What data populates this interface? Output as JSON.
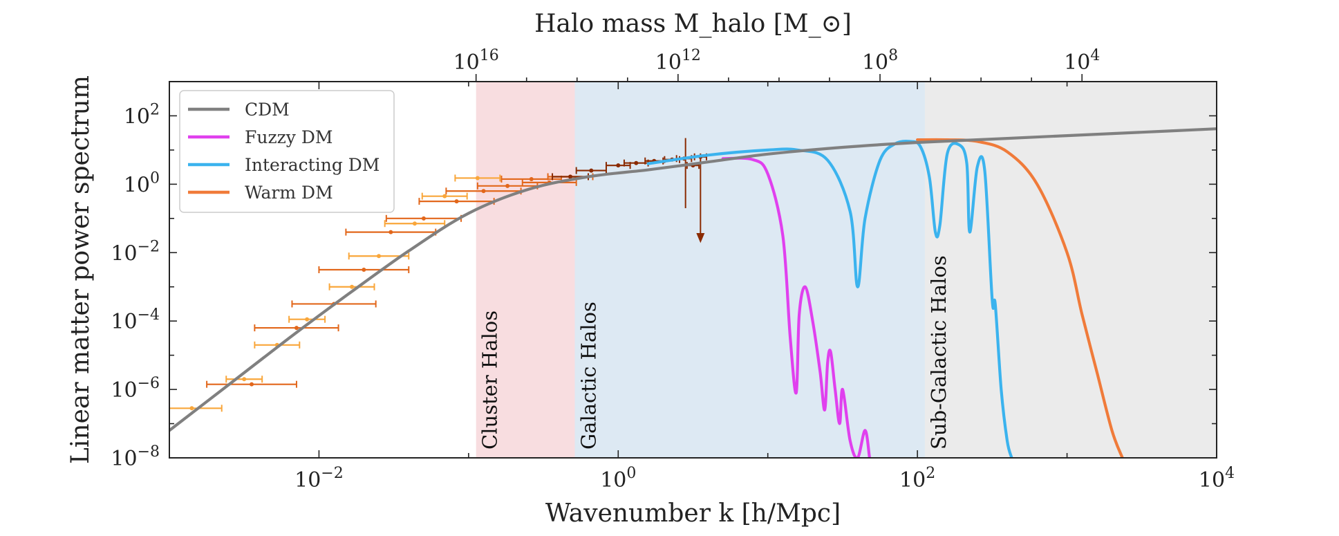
{
  "chart_data": {
    "type": "line",
    "title": "",
    "xlabel": "Wavenumber k  [h/Mpc]",
    "ylabel": "Linear matter power spectrum",
    "top_xlabel": "Halo mass M_halo [M_⊙]",
    "x_scale": "log",
    "y_scale": "log",
    "xlim_log10": [
      -3,
      4
    ],
    "ylim_log10": [
      -8,
      3
    ],
    "x_ticks": [
      {
        "base": "10",
        "exp": "−2",
        "log": -2
      },
      {
        "base": "10",
        "exp": "0",
        "log": 0
      },
      {
        "base": "10",
        "exp": "2",
        "log": 2
      },
      {
        "base": "10",
        "exp": "4",
        "log": 4
      }
    ],
    "y_ticks": [
      {
        "base": "10",
        "exp": "2",
        "log": 2
      },
      {
        "base": "10",
        "exp": "0",
        "log": 0
      },
      {
        "base": "10",
        "exp": "−2",
        "log": -2
      },
      {
        "base": "10",
        "exp": "−4",
        "log": -4
      },
      {
        "base": "10",
        "exp": "−6",
        "log": -6
      },
      {
        "base": "10",
        "exp": "−8",
        "log": -8
      }
    ],
    "top_ticks": [
      {
        "base": "10",
        "exp": "16",
        "k_log": -0.95
      },
      {
        "base": "10",
        "exp": "12",
        "k_log": 0.4
      },
      {
        "base": "10",
        "exp": "8",
        "k_log": 1.75
      },
      {
        "base": "10",
        "exp": "4",
        "k_log": 3.1
      }
    ],
    "regions": [
      {
        "name": "Cluster Halos",
        "k_log_range": [
          -0.95,
          -0.29
        ],
        "color": "#f8dde0"
      },
      {
        "name": "Galactic Halos",
        "k_log_range": [
          -0.29,
          2.05
        ],
        "color": "#dde9f3"
      },
      {
        "name": "Sub-Galactic Halos",
        "k_log_range": [
          2.05,
          4.0
        ],
        "color": "#ebebeb"
      }
    ],
    "series": [
      {
        "name": "CDM",
        "color": "#808080",
        "x_log": [
          -3,
          -2.6,
          -2.2,
          -1.8,
          -1.4,
          -1.0,
          -0.6,
          -0.2,
          0.2,
          0.6,
          1.0,
          1.5,
          2.0,
          2.5,
          3.0,
          3.5,
          4.0
        ],
        "y_log": [
          -7.2,
          -5.85,
          -4.5,
          -3.2,
          -1.95,
          -0.85,
          -0.15,
          0.22,
          0.42,
          0.65,
          0.88,
          1.08,
          1.22,
          1.32,
          1.42,
          1.52,
          1.62
        ]
      },
      {
        "name": "Fuzzy DM",
        "color": "#e040ee",
        "x_log": [
          0.7,
          0.9,
          1.0,
          1.1,
          1.15,
          1.19,
          1.21,
          1.25,
          1.3,
          1.35,
          1.38,
          1.4,
          1.42,
          1.45,
          1.48,
          1.5,
          1.55,
          1.6,
          1.65,
          1.68
        ],
        "y_log": [
          0.75,
          0.72,
          0.3,
          -1.5,
          -4.5,
          -6.1,
          -3.8,
          -3.0,
          -4.0,
          -5.5,
          -6.6,
          -5.2,
          -4.9,
          -6.0,
          -7.0,
          -6.0,
          -7.5,
          -8.0,
          -7.2,
          -8.0
        ]
      },
      {
        "name": "Interacting DM",
        "color": "#3bb3ee",
        "x_log": [
          0.2,
          0.6,
          1.0,
          1.2,
          1.4,
          1.55,
          1.6,
          1.65,
          1.75,
          1.85,
          1.95,
          2.02,
          2.08,
          2.12,
          2.15,
          2.2,
          2.28,
          2.33,
          2.35,
          2.4,
          2.45,
          2.5,
          2.52,
          2.56,
          2.6,
          2.63
        ],
        "y_log": [
          0.6,
          0.85,
          1.0,
          1.0,
          0.7,
          -0.8,
          -3.0,
          -1.0,
          0.7,
          1.18,
          1.25,
          1.1,
          0.2,
          -1.4,
          -1.2,
          0.9,
          1.15,
          0.6,
          -1.4,
          0.5,
          0.4,
          -3.4,
          -3.5,
          -6.0,
          -7.5,
          -8.0
        ]
      },
      {
        "name": "Warm DM",
        "color": "#f07b3a",
        "x_log": [
          2.0,
          2.2,
          2.4,
          2.6,
          2.8,
          3.0,
          3.1,
          3.2,
          3.3,
          3.37
        ],
        "y_log": [
          1.3,
          1.3,
          1.25,
          0.95,
          0.0,
          -2.0,
          -3.8,
          -5.5,
          -7.2,
          -8.0
        ]
      }
    ],
    "data_points": {
      "light_orange": {
        "color": "#f9a63a",
        "points": [
          [
            -2.85,
            -6.55,
            0.2
          ],
          [
            -2.5,
            -5.7,
            0.12
          ],
          [
            -2.28,
            -4.7,
            0.15
          ],
          [
            -2.08,
            -3.95,
            0.12
          ],
          [
            -1.78,
            -3.0,
            0.15
          ],
          [
            -1.6,
            -2.1,
            0.2
          ],
          [
            -1.36,
            -1.15,
            0.2
          ],
          [
            -1.16,
            -0.35,
            0.15
          ],
          [
            -0.94,
            0.18,
            0.15
          ]
        ]
      },
      "dark_orange": {
        "color": "#e2671b",
        "points": [
          [
            -2.45,
            -5.85,
            0.3
          ],
          [
            -2.15,
            -4.2,
            0.28
          ],
          [
            -1.9,
            -3.5,
            0.28
          ],
          [
            -1.7,
            -2.5,
            0.3
          ],
          [
            -1.52,
            -1.4,
            0.3
          ],
          [
            -1.3,
            -1.0,
            0.25
          ],
          [
            -1.08,
            -0.5,
            0.25
          ],
          [
            -0.9,
            -0.2,
            0.25
          ],
          [
            -0.74,
            -0.05,
            0.2
          ],
          [
            -0.58,
            0.15,
            0.2
          ],
          [
            -0.46,
            0.05,
            0.18
          ],
          [
            -0.32,
            0.22,
            0.15
          ]
        ]
      },
      "dark_red": {
        "color": "#8a2a00",
        "points": [
          [
            -0.32,
            0.22,
            0.12
          ],
          [
            -0.18,
            0.4,
            0.1
          ],
          [
            0.0,
            0.55,
            0.08
          ],
          [
            0.12,
            0.62,
            0.08
          ],
          [
            0.24,
            0.68,
            0.06
          ],
          [
            0.36,
            0.72,
            0.05
          ],
          [
            0.44,
            0.75,
            0.05
          ],
          [
            0.5,
            0.55,
            0.04
          ],
          [
            0.55,
            0.8,
            0.04
          ]
        ]
      }
    }
  },
  "legend": {
    "items": [
      {
        "label": "CDM",
        "color": "#808080"
      },
      {
        "label": "Fuzzy DM",
        "color": "#e040ee"
      },
      {
        "label": "Interacting DM",
        "color": "#3bb3ee"
      },
      {
        "label": "Warm DM",
        "color": "#f07b3a"
      }
    ]
  }
}
